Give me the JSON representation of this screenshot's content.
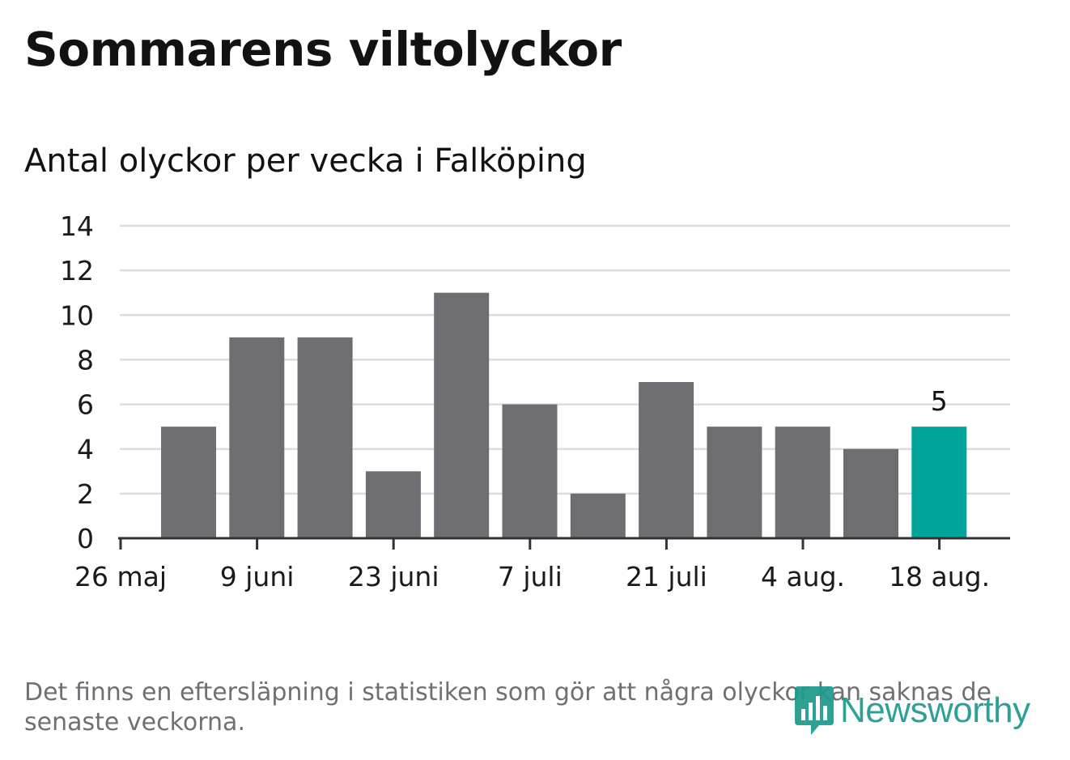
{
  "title": "Sommarens viltolyckor",
  "subtitle": "Antal olyckor per vecka i Falköping",
  "footnote": "Det finns en eftersläpning i statistiken som gör att några olyckor kan saknas de senaste veckorna.",
  "logo": {
    "text": "Newsworthy",
    "icon": "bar-chart-speech-bubble-icon"
  },
  "colors": {
    "bar": "#6e6d72",
    "highlight": "#00a499",
    "grid": "#dcdcdc",
    "axis": "#333333",
    "brand": "#1f9a8e"
  },
  "chart_data": {
    "type": "bar",
    "title": "Antal olyckor per vecka i Falköping",
    "xlabel": "",
    "ylabel": "",
    "ylim": [
      0,
      14
    ],
    "yticks": [
      "0",
      "2",
      "4",
      "6",
      "8",
      "10",
      "12",
      "14"
    ],
    "grid": true,
    "legend": "none",
    "xticks": [
      "26 maj",
      "9 juni",
      "23 juni",
      "7 juli",
      "21 juli",
      "4 aug.",
      "18 aug."
    ],
    "values": [
      5,
      9,
      9,
      3,
      11,
      6,
      2,
      7,
      5,
      5,
      4,
      5
    ],
    "highlight_index": 11,
    "data_labels": [
      {
        "index": 11,
        "text": "5"
      }
    ]
  }
}
